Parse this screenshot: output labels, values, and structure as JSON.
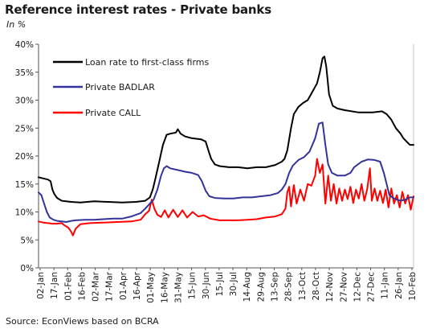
{
  "chart_data": {
    "type": "line",
    "title": "Reference interest rates - Private banks",
    "subtitle": "In %",
    "source": "Source: EconViews based on BCRA",
    "y_ticks": [
      "0%",
      "5%",
      "10%",
      "15%",
      "20%",
      "25%",
      "30%",
      "35%",
      "40%"
    ],
    "ylim": [
      0,
      40
    ],
    "x_tick_labels": [
      "02-Jan",
      "17-Jan",
      "01-Feb",
      "16-Feb",
      "02-Mar",
      "17-Mar",
      "01-Apr",
      "16-Apr",
      "01-May",
      "16-May",
      "31-May",
      "15-Jun",
      "30-Jun",
      "15-Jul",
      "30-Jul",
      "14-Aug",
      "29-Aug",
      "13-Sep",
      "28-Sep",
      "13-Oct",
      "28-Oct",
      "12-Nov",
      "27-Nov",
      "12-Dec",
      "27-Dec",
      "11-Jan",
      "26-Jan",
      "10-Feb"
    ],
    "grid": false,
    "legend_position": "top-left",
    "series": [
      {
        "name": "Loan rate to first-class firms",
        "color": "#000000",
        "points": [
          [
            0,
            16.2
          ],
          [
            5,
            16
          ],
          [
            10,
            15.8
          ],
          [
            13,
            15.5
          ],
          [
            15,
            14
          ],
          [
            17,
            13.2
          ],
          [
            20,
            12.5
          ],
          [
            25,
            12
          ],
          [
            35,
            11.8
          ],
          [
            45,
            11.7
          ],
          [
            60,
            11.9
          ],
          [
            75,
            11.8
          ],
          [
            90,
            11.7
          ],
          [
            105,
            11.8
          ],
          [
            115,
            12
          ],
          [
            120,
            12.6
          ],
          [
            123,
            14
          ],
          [
            126,
            16
          ],
          [
            130,
            19
          ],
          [
            134,
            22
          ],
          [
            138,
            23.8
          ],
          [
            142,
            24
          ],
          [
            148,
            24.2
          ],
          [
            150,
            24.8
          ],
          [
            153,
            24
          ],
          [
            158,
            23.5
          ],
          [
            165,
            23.2
          ],
          [
            175,
            23
          ],
          [
            180,
            22.6
          ],
          [
            183,
            21
          ],
          [
            186,
            19.5
          ],
          [
            190,
            18.5
          ],
          [
            195,
            18.2
          ],
          [
            205,
            18
          ],
          [
            215,
            18
          ],
          [
            225,
            17.8
          ],
          [
            235,
            18
          ],
          [
            245,
            18
          ],
          [
            255,
            18.4
          ],
          [
            262,
            19
          ],
          [
            265,
            19.5
          ],
          [
            268,
            21
          ],
          [
            272,
            25
          ],
          [
            275,
            27.5
          ],
          [
            280,
            28.8
          ],
          [
            285,
            29.5
          ],
          [
            290,
            30
          ],
          [
            295,
            31.5
          ],
          [
            300,
            33
          ],
          [
            303,
            35
          ],
          [
            306,
            37.5
          ],
          [
            308,
            37.8
          ],
          [
            310,
            36
          ],
          [
            313,
            31
          ],
          [
            317,
            29
          ],
          [
            322,
            28.5
          ],
          [
            330,
            28.2
          ],
          [
            345,
            27.8
          ],
          [
            360,
            27.8
          ],
          [
            370,
            28
          ],
          [
            375,
            27.5
          ],
          [
            380,
            26.5
          ],
          [
            385,
            25
          ],
          [
            390,
            24
          ],
          [
            393,
            23.2
          ],
          [
            397,
            22.5
          ],
          [
            400,
            22
          ],
          [
            404,
            22
          ]
        ]
      },
      {
        "name": "Private BADLAR",
        "color": "#333399",
        "points": [
          [
            0,
            13.5
          ],
          [
            3,
            13
          ],
          [
            6,
            11.5
          ],
          [
            9,
            10
          ],
          [
            12,
            9
          ],
          [
            16,
            8.6
          ],
          [
            20,
            8.4
          ],
          [
            25,
            8.3
          ],
          [
            30,
            8.2
          ],
          [
            35,
            8.4
          ],
          [
            40,
            8.5
          ],
          [
            50,
            8.6
          ],
          [
            60,
            8.6
          ],
          [
            70,
            8.7
          ],
          [
            80,
            8.8
          ],
          [
            90,
            8.8
          ],
          [
            100,
            9.2
          ],
          [
            110,
            9.8
          ],
          [
            115,
            10.6
          ],
          [
            120,
            11.5
          ],
          [
            124,
            12.2
          ],
          [
            128,
            14
          ],
          [
            132,
            16.5
          ],
          [
            135,
            17.8
          ],
          [
            138,
            18.2
          ],
          [
            142,
            17.8
          ],
          [
            150,
            17.5
          ],
          [
            158,
            17.2
          ],
          [
            165,
            17
          ],
          [
            172,
            16.6
          ],
          [
            176,
            15.5
          ],
          [
            180,
            13.8
          ],
          [
            184,
            12.8
          ],
          [
            190,
            12.5
          ],
          [
            200,
            12.4
          ],
          [
            210,
            12.4
          ],
          [
            220,
            12.6
          ],
          [
            230,
            12.6
          ],
          [
            240,
            12.8
          ],
          [
            250,
            13
          ],
          [
            258,
            13.4
          ],
          [
            262,
            14
          ],
          [
            266,
            15
          ],
          [
            270,
            17
          ],
          [
            274,
            18.3
          ],
          [
            280,
            19.3
          ],
          [
            286,
            19.8
          ],
          [
            292,
            20.8
          ],
          [
            298,
            23.2
          ],
          [
            302,
            25.8
          ],
          [
            306,
            26
          ],
          [
            309,
            22
          ],
          [
            312,
            18.5
          ],
          [
            316,
            17
          ],
          [
            322,
            16.5
          ],
          [
            330,
            16.5
          ],
          [
            336,
            17
          ],
          [
            340,
            18
          ],
          [
            348,
            19
          ],
          [
            355,
            19.4
          ],
          [
            362,
            19.3
          ],
          [
            368,
            19
          ],
          [
            372,
            17
          ],
          [
            375,
            15
          ],
          [
            378,
            13
          ],
          [
            382,
            12.5
          ],
          [
            386,
            12.2
          ],
          [
            390,
            12
          ],
          [
            395,
            12.2
          ],
          [
            400,
            12.6
          ],
          [
            404,
            12.6
          ]
        ]
      },
      {
        "name": "Private CALL",
        "color": "#ff0000",
        "points": [
          [
            0,
            8.3
          ],
          [
            5,
            8.1
          ],
          [
            10,
            8
          ],
          [
            15,
            7.9
          ],
          [
            20,
            7.9
          ],
          [
            25,
            8
          ],
          [
            28,
            7.6
          ],
          [
            32,
            7.2
          ],
          [
            35,
            6.5
          ],
          [
            37,
            5.8
          ],
          [
            40,
            7
          ],
          [
            45,
            7.8
          ],
          [
            55,
            8
          ],
          [
            70,
            8.1
          ],
          [
            85,
            8.2
          ],
          [
            100,
            8.3
          ],
          [
            110,
            8.6
          ],
          [
            115,
            9.6
          ],
          [
            119,
            10.2
          ],
          [
            122,
            12.2
          ],
          [
            125,
            10.5
          ],
          [
            128,
            9.5
          ],
          [
            132,
            9.1
          ],
          [
            136,
            10.3
          ],
          [
            140,
            9
          ],
          [
            145,
            10.4
          ],
          [
            150,
            9.1
          ],
          [
            155,
            10.3
          ],
          [
            160,
            9
          ],
          [
            166,
            10
          ],
          [
            172,
            9.2
          ],
          [
            178,
            9.4
          ],
          [
            185,
            8.8
          ],
          [
            195,
            8.5
          ],
          [
            205,
            8.5
          ],
          [
            215,
            8.5
          ],
          [
            225,
            8.6
          ],
          [
            235,
            8.7
          ],
          [
            245,
            9
          ],
          [
            255,
            9.2
          ],
          [
            262,
            9.6
          ],
          [
            266,
            10.6
          ],
          [
            268,
            13.5
          ],
          [
            270,
            14.5
          ],
          [
            272,
            11
          ],
          [
            275,
            14.8
          ],
          [
            278,
            11.5
          ],
          [
            282,
            14
          ],
          [
            286,
            12
          ],
          [
            290,
            15
          ],
          [
            294,
            14.7
          ],
          [
            298,
            16.5
          ],
          [
            300,
            19.5
          ],
          [
            303,
            17
          ],
          [
            306,
            18.5
          ],
          [
            309,
            11.5
          ],
          [
            312,
            16.5
          ],
          [
            315,
            12
          ],
          [
            318,
            15
          ],
          [
            321,
            11.5
          ],
          [
            324,
            14.2
          ],
          [
            327,
            12
          ],
          [
            330,
            14
          ],
          [
            333,
            12.3
          ],
          [
            336,
            14.5
          ],
          [
            339,
            11.6
          ],
          [
            342,
            14
          ],
          [
            345,
            12.4
          ],
          [
            348,
            15
          ],
          [
            351,
            12
          ],
          [
            354,
            14
          ],
          [
            357,
            17.8
          ],
          [
            359,
            12
          ],
          [
            362,
            14.2
          ],
          [
            365,
            12
          ],
          [
            368,
            13.8
          ],
          [
            371,
            11.6
          ],
          [
            374,
            14
          ],
          [
            377,
            10.8
          ],
          [
            380,
            14.2
          ],
          [
            383,
            11.5
          ],
          [
            386,
            13
          ],
          [
            389,
            10.8
          ],
          [
            392,
            13.6
          ],
          [
            395,
            11.5
          ],
          [
            398,
            13
          ],
          [
            401,
            10.4
          ],
          [
            404,
            12.8
          ]
        ]
      }
    ]
  }
}
